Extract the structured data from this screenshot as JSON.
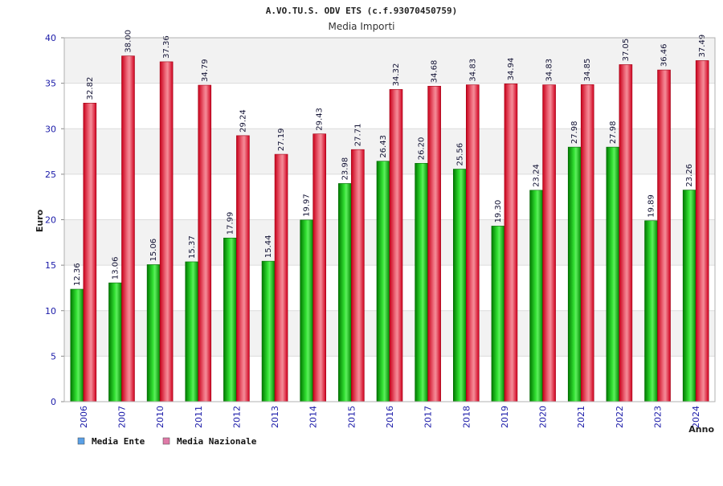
{
  "chart_data": {
    "type": "bar",
    "title": "A.VO.TU.S. ODV ETS (c.f.93070450759)",
    "subtitle": "Media Importi",
    "xlabel": "Anno",
    "ylabel": "Euro",
    "ylim": [
      0,
      40
    ],
    "yticks": [
      "0",
      "5",
      "10",
      "15",
      "20",
      "25",
      "30",
      "35",
      "40"
    ],
    "grid": true,
    "legend_position": "bottom-left",
    "categories": [
      "2006",
      "2007",
      "2010",
      "2011",
      "2012",
      "2013",
      "2014",
      "2015",
      "2016",
      "2017",
      "2018",
      "2019",
      "2020",
      "2021",
      "2022",
      "2023",
      "2024"
    ],
    "series": [
      {
        "name": "Media Ente",
        "color": "#00b000",
        "legend_color": "#5aa0e6",
        "values": [
          12.36,
          13.06,
          15.06,
          15.37,
          17.99,
          15.44,
          19.97,
          23.98,
          26.43,
          26.2,
          25.56,
          19.3,
          23.24,
          27.98,
          27.98,
          19.89,
          23.26
        ],
        "labels": [
          "12.36",
          "13.06",
          "15.06",
          "15.37",
          "17.99",
          "15.44",
          "19.97",
          "23.98",
          "26.43",
          "26.20",
          "25.56",
          "19.30",
          "23.24",
          "27.98",
          "27.98",
          "19.89",
          "23.26"
        ]
      },
      {
        "name": "Media Nazionale",
        "color": "#e8102a",
        "legend_color": "#e07aa8",
        "values": [
          32.82,
          38.0,
          37.36,
          34.79,
          29.24,
          27.19,
          29.43,
          27.71,
          34.32,
          34.68,
          34.83,
          34.94,
          34.83,
          34.85,
          37.05,
          36.46,
          37.49
        ],
        "labels": [
          "32.82",
          "38.00",
          "37.36",
          "34.79",
          "29.24",
          "27.19",
          "29.43",
          "27.71",
          "34.32",
          "34.68",
          "34.83",
          "34.94",
          "34.83",
          "34.85",
          "37.05",
          "36.46",
          "37.49"
        ]
      }
    ]
  }
}
